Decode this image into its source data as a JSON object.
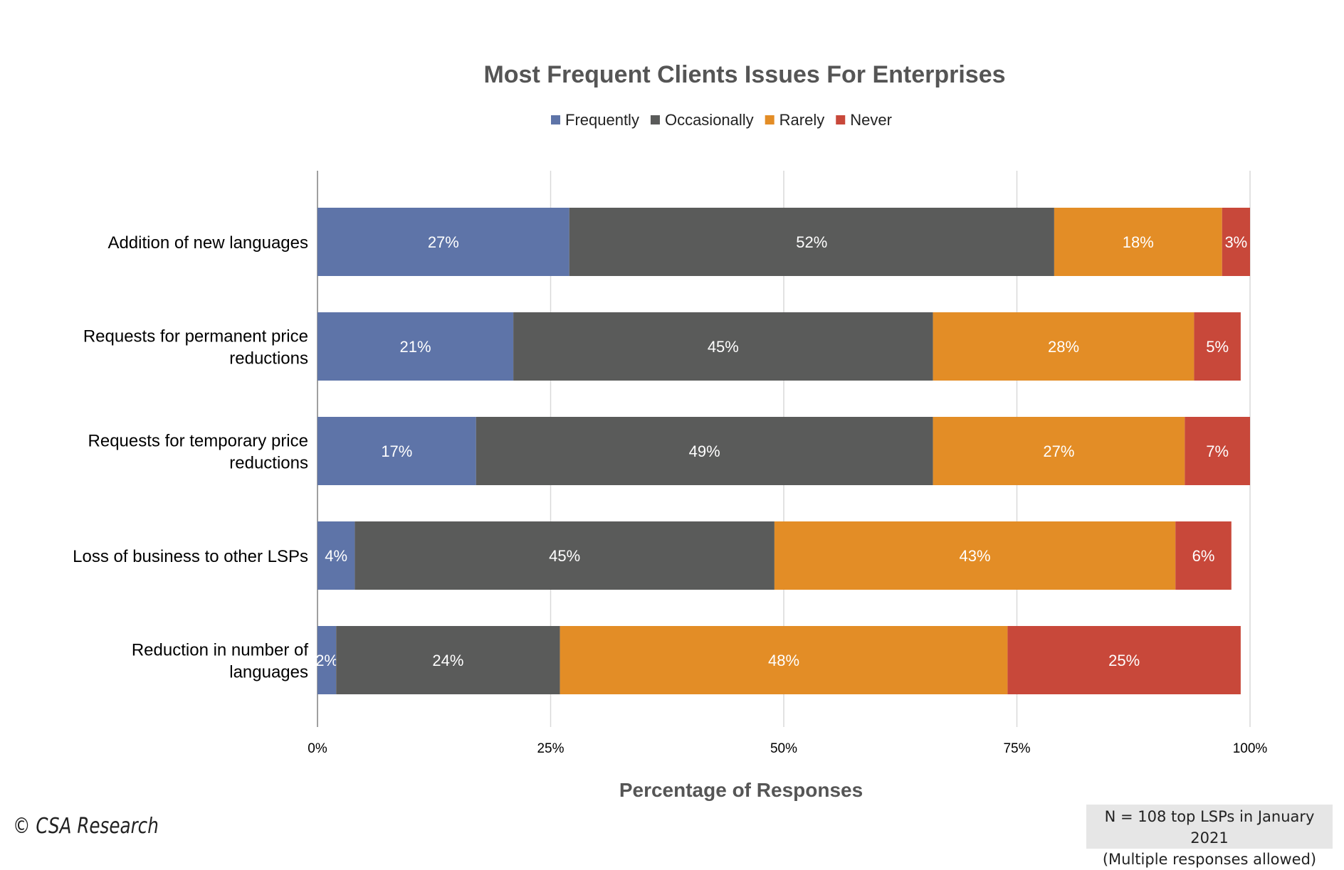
{
  "chart_data": {
    "type": "bar",
    "orientation": "horizontal",
    "stacked": true,
    "title": "Most Frequent Clients Issues For Enterprises",
    "xlabel": "Percentage of Responses",
    "ylabel": "",
    "xlim": [
      0,
      100
    ],
    "xticks": [
      "0%",
      "25%",
      "50%",
      "75%",
      "100%"
    ],
    "xtick_values": [
      0,
      25,
      50,
      75,
      100
    ],
    "grid": true,
    "legend_position": "top-center",
    "categories": [
      [
        "Addition of new languages"
      ],
      [
        "Requests for permanent price",
        "reductions"
      ],
      [
        "Requests for temporary price",
        "reductions"
      ],
      [
        "Loss of business to other LSPs"
      ],
      [
        "Reduction in number of",
        "languages"
      ]
    ],
    "series": [
      {
        "name": "Frequently",
        "color": "#5e74a8",
        "values": [
          27,
          21,
          17,
          4,
          2
        ],
        "labels": [
          "27%",
          "21%",
          "17%",
          "4%",
          "2%"
        ]
      },
      {
        "name": "Occasionally",
        "color": "#5a5b5a",
        "values": [
          52,
          45,
          49,
          45,
          24
        ],
        "labels": [
          "52%",
          "45%",
          "49%",
          "45%",
          "24%"
        ]
      },
      {
        "name": "Rarely",
        "color": "#e38d26",
        "values": [
          18,
          28,
          27,
          43,
          48
        ],
        "labels": [
          "18%",
          "28%",
          "27%",
          "43%",
          "48%"
        ]
      },
      {
        "name": "Never",
        "color": "#c8483a",
        "values": [
          3,
          5,
          7,
          6,
          25
        ],
        "labels": [
          "3%",
          "5%",
          "7%",
          "6%",
          "25%"
        ]
      }
    ]
  },
  "footer": {
    "copyright": "© CSA Research",
    "note_line1": "N = 108 top LSPs in January 2021",
    "note_line2": "(Multiple responses allowed)"
  }
}
